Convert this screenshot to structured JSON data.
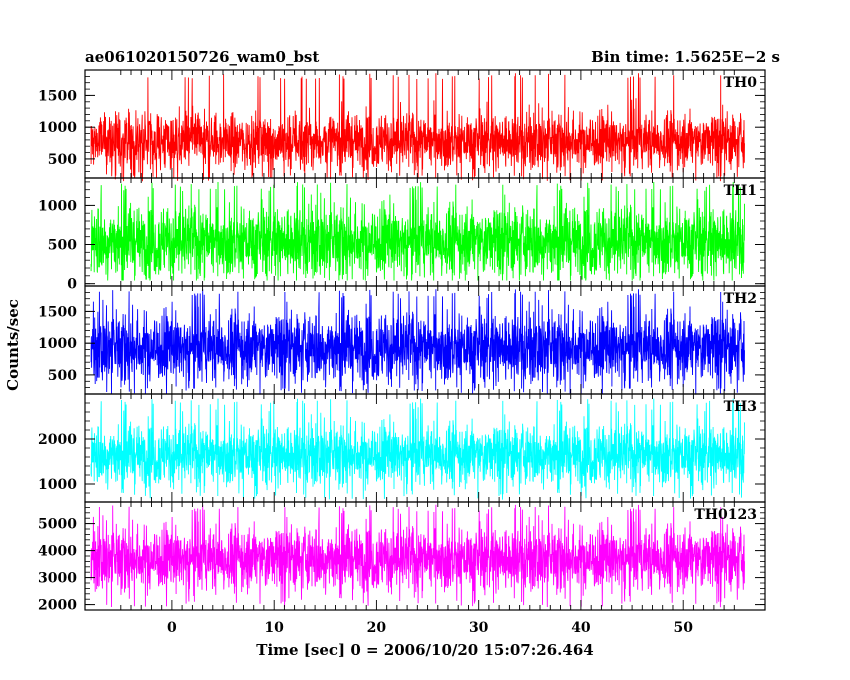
{
  "chart_data": {
    "type": "line",
    "title": "ae061020150726_wam0_bst",
    "subtitle": "Bin time: 1.5625E−2 s",
    "xlabel": "Time [sec] 0 = 2006/10/20 15:07:26.464",
    "ylabel": "Counts/sec",
    "xlim": [
      -8.5,
      58
    ],
    "x_range_data": [
      -7.9,
      56.0
    ],
    "x_ticks": [
      0,
      10,
      20,
      30,
      40,
      50
    ],
    "panels": [
      {
        "name": "TH0",
        "color": "#ff0000",
        "ylim": [
          200,
          1900
        ],
        "yticks": [
          500,
          1000,
          1500
        ],
        "mean": 780,
        "spread": 230,
        "low": 150,
        "high": 1850,
        "lead": 420
      },
      {
        "name": "TH1",
        "color": "#00ff00",
        "ylim": [
          -30,
          1350
        ],
        "yticks": [
          0,
          500,
          1000
        ],
        "mean": 540,
        "spread": 240,
        "low": 40,
        "high": 1300,
        "lead": 160
      },
      {
        "name": "TH2",
        "color": "#0000ff",
        "ylim": [
          200,
          1900
        ],
        "yticks": [
          500,
          1000,
          1500
        ],
        "mean": 930,
        "spread": 290,
        "low": 190,
        "high": 1850,
        "lead": 700
      },
      {
        "name": "TH3",
        "color": "#00ffff",
        "ylim": [
          600,
          3000
        ],
        "yticks": [
          1000,
          2000
        ],
        "mean": 1650,
        "spread": 360,
        "low": 650,
        "high": 2900,
        "lead": 1450
      },
      {
        "name": "TH0123",
        "color": "#ff00ff",
        "ylim": [
          1800,
          5800
        ],
        "yticks": [
          2000,
          3000,
          4000,
          5000
        ],
        "mean": 3700,
        "spread": 620,
        "low": 1900,
        "high": 5700,
        "lead": 2900
      }
    ]
  }
}
